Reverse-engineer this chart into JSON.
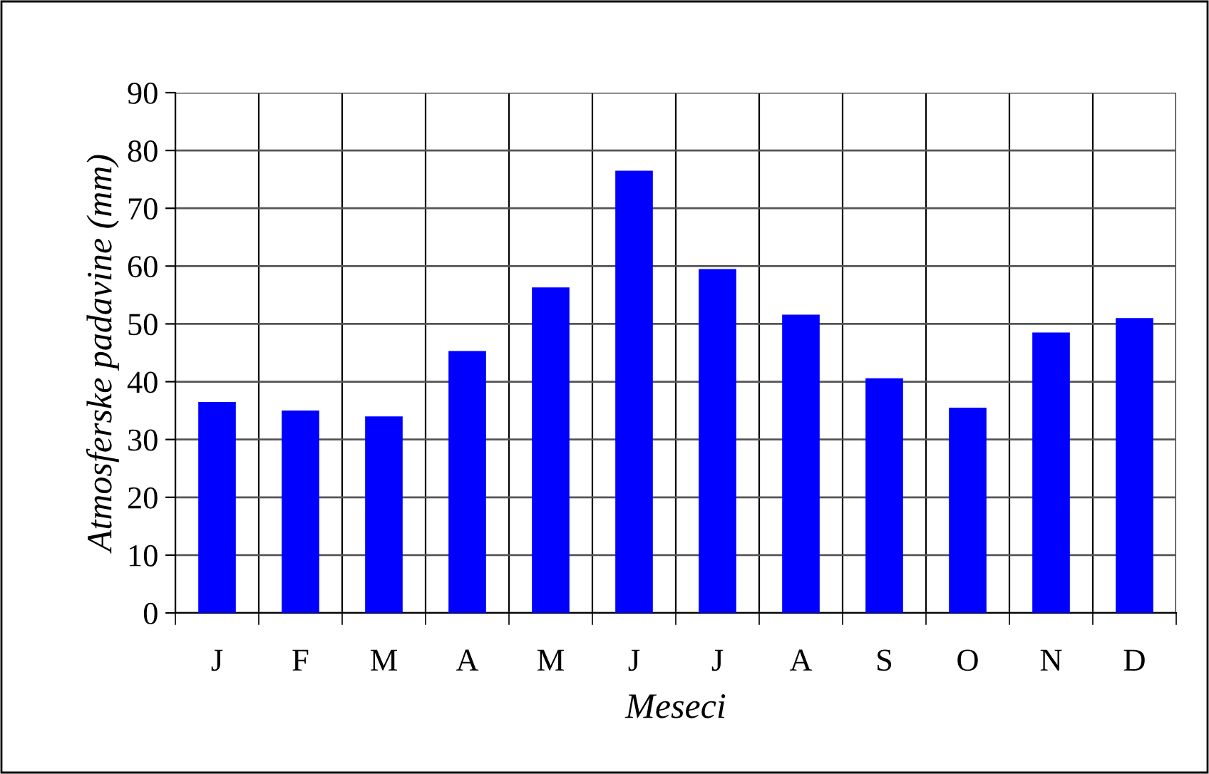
{
  "chart_data": {
    "type": "bar",
    "xlabel": "Meseci",
    "ylabel": "Atmosferske padavine (mm)",
    "categories": [
      "J",
      "F",
      "M",
      "A",
      "M",
      "J",
      "J",
      "A",
      "S",
      "O",
      "N",
      "D"
    ],
    "values": [
      36.5,
      35,
      34,
      45.3,
      56.3,
      76.5,
      59.5,
      51.6,
      40.6,
      35.5,
      48.5,
      51
    ],
    "color": "#0000ff",
    "ylim": [
      0,
      90
    ],
    "yticks": [
      0,
      10,
      20,
      30,
      40,
      50,
      60,
      70,
      80,
      90
    ],
    "grid": true
  }
}
